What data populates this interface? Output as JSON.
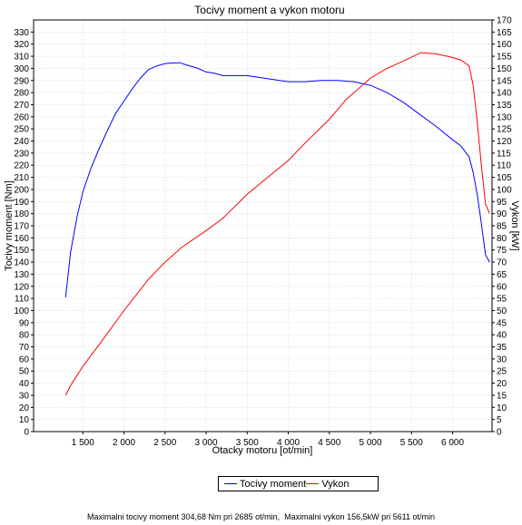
{
  "chart_data": {
    "type": "line",
    "title": "Tocivy moment a vykon motoru",
    "xlabel": "Otacky motoru [ot/min]",
    "ylabel_left": "Tocivy moment [Nm]",
    "ylabel_right": "Vykon [kW]",
    "xlim": [
      900,
      6480
    ],
    "xticks": [
      1500,
      2000,
      2500,
      3000,
      3500,
      4000,
      4500,
      5000,
      5500,
      6000
    ],
    "xtick_labels": [
      "1 500",
      "2 000",
      "2 500",
      "3 000",
      "3 500",
      "4 000",
      "4 500",
      "5 000",
      "5 500",
      "6 000"
    ],
    "ylim_left": [
      0,
      340
    ],
    "ylim_right": [
      0,
      170
    ],
    "yticks_left_step": 10,
    "yticks_left_max": 330,
    "yticks_right_step": 5,
    "yticks_right_max": 170,
    "grid": true,
    "legend_position": "bottom-center",
    "series": [
      {
        "name": "Tocivy moment",
        "axis": "left",
        "color": "#0000ff",
        "x": [
          1290,
          1350,
          1430,
          1500,
          1600,
          1700,
          1800,
          1900,
          2000,
          2100,
          2200,
          2300,
          2400,
          2500,
          2600,
          2685,
          2750,
          2900,
          3000,
          3100,
          3200,
          3500,
          3700,
          4000,
          4200,
          4400,
          4600,
          4800,
          5000,
          5200,
          5400,
          5600,
          5800,
          6000,
          6100,
          6200,
          6250,
          6300,
          6350,
          6400,
          6450
        ],
        "y": [
          111,
          148,
          178,
          198,
          218,
          234,
          249,
          263,
          273,
          283,
          292,
          299,
          302,
          304,
          304.5,
          304.68,
          303,
          300,
          297,
          296,
          294,
          294,
          292,
          289,
          289,
          290,
          290,
          289,
          286,
          280,
          272,
          262,
          252,
          241,
          236,
          227,
          214,
          196,
          172,
          146,
          140
        ]
      },
      {
        "name": "Vykon",
        "axis": "right",
        "color": "#ff0000",
        "x": [
          1290,
          1350,
          1500,
          1700,
          2000,
          2300,
          2500,
          2700,
          3000,
          3200,
          3500,
          4000,
          4200,
          4500,
          4700,
          5000,
          5200,
          5400,
          5611,
          5800,
          6000,
          6100,
          6200,
          6250,
          6300,
          6350,
          6400,
          6450
        ],
        "y": [
          15,
          19,
          27,
          36,
          50,
          63,
          70,
          76,
          83,
          88,
          98,
          112,
          119,
          129,
          137,
          146,
          150,
          153,
          156.5,
          156,
          154.5,
          153.5,
          151,
          143,
          128,
          110,
          94,
          90
        ]
      }
    ],
    "footer": "Maximalni tocivy moment 304,68 Nm pri 2685 ot/min,  Maximalni vykon 156,5kW pri 5611 ot/min"
  }
}
